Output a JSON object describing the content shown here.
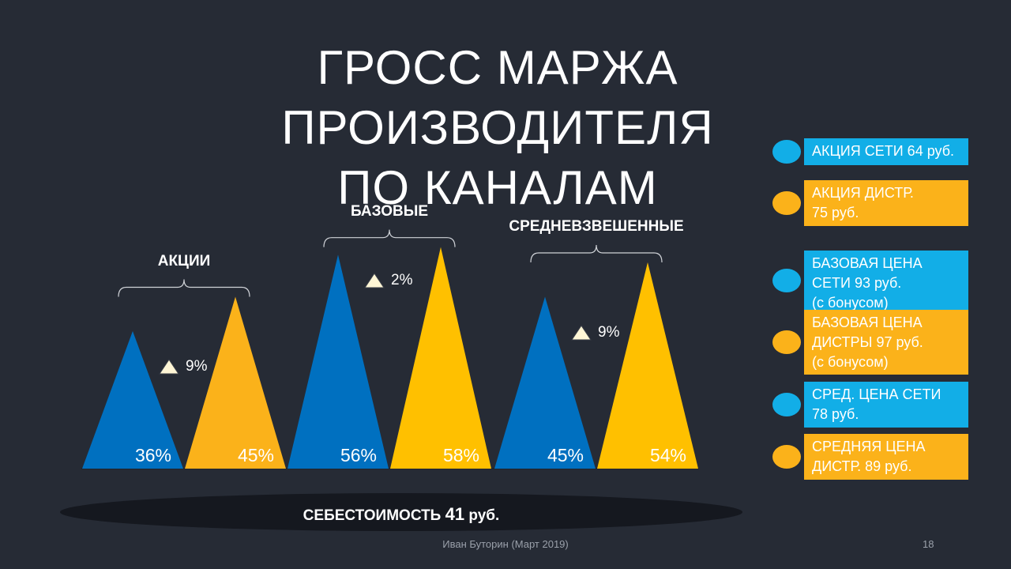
{
  "title": {
    "line1": "ГРОСС МАРЖА ПРОИЗВОДИТЕЛЯ",
    "line2": "ПО КАНАЛАМ"
  },
  "colors": {
    "blue": "#0070c0",
    "orange": "#fbb21a",
    "yellow": "#ffc000",
    "cyan": "#12aee7",
    "background": "#262b35"
  },
  "chart_data": {
    "type": "bar",
    "shape": "triangle",
    "groups": [
      {
        "name": "АКЦИИ",
        "delta": "9%",
        "bars": [
          {
            "value": 36,
            "label": "36%",
            "color": "blue"
          },
          {
            "value": 45,
            "label": "45%",
            "color": "orange"
          }
        ]
      },
      {
        "name": "БАЗОВЫЕ",
        "delta": "2%",
        "bars": [
          {
            "value": 56,
            "label": "56%",
            "color": "blue"
          },
          {
            "value": 58,
            "label": "58%",
            "color": "yellow"
          }
        ]
      },
      {
        "name": "СРЕДНЕВЗВЕШЕННЫЕ",
        "delta": "9%",
        "bars": [
          {
            "value": 45,
            "label": "45%",
            "color": "blue"
          },
          {
            "value": 54,
            "label": "54%",
            "color": "yellow"
          }
        ]
      }
    ],
    "baseline": {
      "text": "СЕБЕСТОИМОСТЬ",
      "value": "41",
      "unit": "руб."
    }
  },
  "legend": [
    {
      "color": "cyan",
      "lines": [
        "АКЦИЯ СЕТИ 64 руб."
      ]
    },
    {
      "color": "orange",
      "lines": [
        "АКЦИЯ ДИСТР.",
        "75 руб."
      ]
    },
    {
      "color": "cyan",
      "lines": [
        "БАЗОВАЯ ЦЕНА",
        "СЕТИ 93 руб.",
        "(с бонусом)"
      ]
    },
    {
      "color": "orange",
      "lines": [
        "БАЗОВАЯ ЦЕНА",
        "ДИСТРЫ 97 руб.",
        "(с бонусом)"
      ]
    },
    {
      "color": "cyan",
      "lines": [
        "СРЕД. ЦЕНА СЕТИ",
        "78 руб."
      ]
    },
    {
      "color": "orange",
      "lines": [
        "СРЕДНЯЯ ЦЕНА",
        "ДИСТР.  89 руб."
      ]
    }
  ],
  "footer": {
    "author": "Иван Буторин (Март 2019)",
    "page": "18"
  }
}
